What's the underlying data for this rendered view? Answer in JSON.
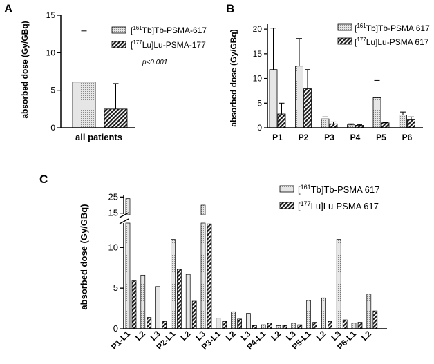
{
  "panel_labels": {
    "a": "A",
    "b": "B",
    "c": "C"
  },
  "significance": "p<0.001",
  "legend": {
    "tb_pre": "[",
    "tb_sup": "161",
    "tb_rest_a": "Tb]Tb-PSMA-617",
    "tb_rest_bc": "Tb]Tb-PSMA 617",
    "lu_pre": "[",
    "lu_sup": "177",
    "lu_rest_a": "Lu]Lu-PSMA-177",
    "lu_rest_bc": "Lu]Lu-PSMA 617"
  },
  "colors": {
    "tb_fill": "#d9d9d9",
    "lu_fill": "#6e6e6e",
    "axis": "#000000"
  },
  "chart_data": [
    {
      "id": "A",
      "type": "bar",
      "ylabel": "absorbed dose (Gy/GBq)",
      "categories": [
        "all patients"
      ],
      "ylim": [
        0,
        15
      ],
      "yticks": [
        0,
        5,
        10,
        15
      ],
      "series": [
        {
          "name": "[161Tb]Tb-PSMA-617",
          "values": [
            6.1
          ],
          "errors": [
            6.8
          ]
        },
        {
          "name": "[177Lu]Lu-PSMA-177",
          "values": [
            2.5
          ],
          "errors": [
            3.4
          ]
        }
      ]
    },
    {
      "id": "B",
      "type": "bar",
      "ylabel": "absorbed dose (Gy/GBq)",
      "categories": [
        "P1",
        "P2",
        "P3",
        "P4",
        "P5",
        "P6"
      ],
      "ylim": [
        0,
        21
      ],
      "yticks": [
        0,
        5,
        10,
        15,
        20
      ],
      "series": [
        {
          "name": "[161Tb]Tb-PSMA 617",
          "values": [
            11.8,
            12.5,
            1.8,
            0.6,
            6.1,
            2.6
          ],
          "errors": [
            8.4,
            5.6,
            0.4,
            0.2,
            3.5,
            0.6
          ]
        },
        {
          "name": "[177Lu]Lu-PSMA 617",
          "values": [
            2.8,
            7.9,
            0.8,
            0.5,
            1.0,
            1.6
          ],
          "errors": [
            2.2,
            3.9,
            0.4,
            0.15,
            0.1,
            0.6
          ]
        }
      ]
    },
    {
      "id": "C",
      "type": "bar",
      "ylabel": "absorbed dose (Gy/GBq)",
      "broken_axis": {
        "lower": [
          0,
          13
        ],
        "upper": [
          14,
          26
        ]
      },
      "yticks_lower": [
        0,
        5,
        10
      ],
      "yticks_upper": [
        15,
        25
      ],
      "categories": [
        "P1-L1",
        "L2",
        "L3",
        "P2-L1",
        "L2",
        "L3",
        "P3-L1",
        "L2",
        "L3",
        "P4-L1",
        "L2",
        "L3",
        "P5-L1",
        "L2",
        "L3",
        "P6-L1",
        "L2"
      ],
      "series": [
        {
          "name": "[161Tb]Tb-PSMA 617",
          "values": [
            24.0,
            6.6,
            5.2,
            11.0,
            6.7,
            20.0,
            1.3,
            2.1,
            1.9,
            0.5,
            0.4,
            0.7,
            3.5,
            3.8,
            11.0,
            0.7,
            4.3
          ]
        },
        {
          "name": "[177Lu]Lu-PSMA 617",
          "values": [
            5.9,
            1.4,
            0.9,
            7.3,
            3.4,
            12.9,
            0.9,
            1.2,
            0.4,
            0.7,
            0.4,
            0.5,
            0.8,
            0.9,
            1.1,
            0.8,
            2.2
          ]
        }
      ]
    }
  ]
}
